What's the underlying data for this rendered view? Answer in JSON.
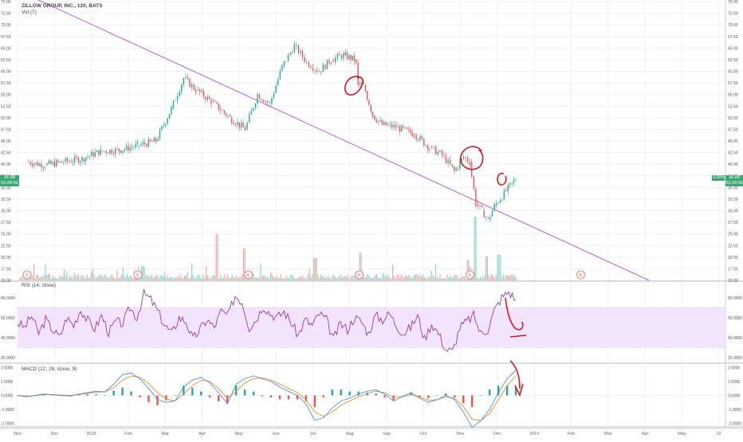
{
  "header": {
    "symbol_line": "ZILLOW GROUP, INC., 120, BATS",
    "vol_label": "Vol (7)",
    "rsi_label": "RSI (14, close)",
    "macd_label": "MACD (12, 26, close, 9)"
  },
  "price_badges": {
    "left_price": "36.88",
    "left_countdown": "01:28:50",
    "right_change": "-6.80%",
    "right_price": "36.88",
    "right_countdown": "01:28:50"
  },
  "colors": {
    "up": "#26a69a",
    "down": "#ef5350",
    "trendline": "#b25fe0",
    "rsi_line": "#8e24aa",
    "rsi_band": "#f1e4fb",
    "macd_line": "#4a90e2",
    "signal_line": "#f08a24",
    "annotation": "#e0141b",
    "earnings_marker": "#f06060",
    "grid": "#eef0f3",
    "badge_bg": "#3ba872"
  },
  "icons": {
    "earnings_marker": "earnings-e-icon"
  },
  "chart_data": [
    {
      "type": "candlestick",
      "pane": "price",
      "ylim": [
        15,
        75
      ],
      "y_ticks": [
        "75.00",
        "72.50",
        "70.00",
        "67.50",
        "65.00",
        "62.50",
        "60.00",
        "57.50",
        "55.00",
        "52.50",
        "50.00",
        "47.50",
        "45.00",
        "42.50",
        "40.00",
        "37.50",
        "35.00",
        "32.50",
        "30.00",
        "27.50",
        "25.00",
        "22.50",
        "20.00",
        "17.50",
        "15.00"
      ],
      "x_ticks": [
        "Nov",
        "Dec",
        "2018",
        "Feb",
        "Mar",
        "Apr",
        "May",
        "Jun",
        "Jul",
        "Aug",
        "Sep",
        "Oct",
        "Nov",
        "Dec",
        "2019",
        "Feb",
        "Mar",
        "Apr",
        "May",
        "22"
      ],
      "last_price": 36.88,
      "change_pct": -6.8,
      "price_path": [
        {
          "x": "Nov 2017",
          "y": 40.5
        },
        {
          "x": "Nov 2017",
          "y": 39.8
        },
        {
          "x": "Dec 2017",
          "y": 40.5
        },
        {
          "x": "Dec 2017",
          "y": 41.2
        },
        {
          "x": "Jan 2018",
          "y": 42.8
        },
        {
          "x": "Jan 2018",
          "y": 43.0
        },
        {
          "x": "Feb 2018",
          "y": 44.0
        },
        {
          "x": "Feb 2018",
          "y": 45.0
        },
        {
          "x": "Mar 2018",
          "y": 52.0
        },
        {
          "x": "Mar 2018",
          "y": 58.5
        },
        {
          "x": "Mar 2018",
          "y": 56.0
        },
        {
          "x": "Apr 2018",
          "y": 53.5
        },
        {
          "x": "Apr 2018",
          "y": 50.0
        },
        {
          "x": "May 2018",
          "y": 47.5
        },
        {
          "x": "May 2018",
          "y": 55.0
        },
        {
          "x": "May 2018",
          "y": 53.0
        },
        {
          "x": "Jun 2018",
          "y": 61.0
        },
        {
          "x": "Jun 2018",
          "y": 65.5
        },
        {
          "x": "Jun 2018",
          "y": 62.0
        },
        {
          "x": "Jul 2018",
          "y": 60.0
        },
        {
          "x": "Jul 2018",
          "y": 62.5
        },
        {
          "x": "Jul 2018",
          "y": 63.5
        },
        {
          "x": "Aug 2018",
          "y": 62.5
        },
        {
          "x": "Aug 2018",
          "y": 57.0
        },
        {
          "x": "Aug 2018",
          "y": 50.5
        },
        {
          "x": "Aug 2018",
          "y": 48.5
        },
        {
          "x": "Sep 2018",
          "y": 48.0
        },
        {
          "x": "Sep 2018",
          "y": 46.5
        },
        {
          "x": "Oct 2018",
          "y": 43.5
        },
        {
          "x": "Oct 2018",
          "y": 42.0
        },
        {
          "x": "Oct 2018",
          "y": 38.5
        },
        {
          "x": "Nov 2018",
          "y": 41.5
        },
        {
          "x": "Nov 2018",
          "y": 40.5
        },
        {
          "x": "Nov 2018",
          "y": 31.5
        },
        {
          "x": "Nov 2018",
          "y": 30.0
        },
        {
          "x": "Nov 2018",
          "y": 28.0
        },
        {
          "x": "Nov 2018",
          "y": 31.0
        },
        {
          "x": "Dec 2018",
          "y": 36.88
        }
      ],
      "trendline": {
        "start": {
          "x": "Nov 2017",
          "y": 77.0
        },
        "end": {
          "x": "Apr 2019",
          "y": 15.0
        }
      },
      "earnings_markers": [
        "Nov 2017",
        "Feb 2018",
        "May 2018",
        "Aug 2018",
        "Nov 2018",
        "Feb 2019"
      ],
      "annotations": [
        "circle near Aug 2018 at ~57.5",
        "circle near late Oct 2018 at ~42.5",
        "circle near Dec 2018 at ~36"
      ]
    },
    {
      "type": "line",
      "pane": "rsi",
      "name": "RSI (14, close)",
      "ylim": [
        15,
        95
      ],
      "y_ticks": [
        "80.0000",
        "60.0000",
        "40.0000",
        "20.0000"
      ],
      "band": [
        30,
        70
      ],
      "values": [
        55,
        50,
        62,
        44,
        58,
        48,
        40,
        60,
        52,
        68,
        57,
        49,
        62,
        45,
        56,
        54,
        70,
        60,
        84,
        78,
        66,
        52,
        44,
        60,
        56,
        38,
        48,
        58,
        50,
        66,
        62,
        82,
        76,
        50,
        58,
        72,
        64,
        60,
        66,
        55,
        42,
        58,
        52,
        64,
        58,
        38,
        54,
        48,
        60,
        56,
        44,
        62,
        58,
        64,
        52,
        44,
        50,
        62,
        38,
        54,
        44,
        28,
        26,
        50,
        56,
        62,
        44,
        48,
        68,
        80,
        86,
        78
      ]
    },
    {
      "type": "line",
      "pane": "macd",
      "name": "MACD (12, 26, close, 9)",
      "ylim": [
        -2.2,
        2.2
      ],
      "y_ticks": [
        "2.0000",
        "1.0000",
        "0.0000",
        "-1.0000",
        "-2.0000"
      ],
      "macd": [
        0.0,
        -0.1,
        0.0,
        0.1,
        0.05,
        0.0,
        -0.05,
        0.1,
        0.2,
        0.3,
        0.25,
        0.8,
        1.5,
        1.6,
        1.2,
        0.5,
        -0.3,
        -0.5,
        -0.4,
        0.6,
        1.1,
        1.3,
        0.9,
        0.2,
        -0.6,
        0.8,
        1.2,
        1.4,
        1.2,
        1.0,
        0.6,
        0.3,
        0.0,
        -0.6,
        -1.8,
        -1.6,
        -0.9,
        -0.4,
        -0.2,
        0.1,
        0.3,
        0.4,
        0.1,
        -0.4,
        -0.1,
        0.2,
        -0.2,
        -0.5,
        -0.3,
        0.0,
        -0.3,
        -1.2,
        -2.3,
        -1.8,
        -1.0,
        0.2,
        1.2,
        1.8
      ],
      "signal": [
        0.0,
        -0.05,
        -0.02,
        0.05,
        0.06,
        0.03,
        0.0,
        0.05,
        0.14,
        0.24,
        0.25,
        0.55,
        1.1,
        1.4,
        1.3,
        0.85,
        0.2,
        -0.25,
        -0.4,
        0.1,
        0.7,
        1.1,
        1.0,
        0.5,
        -0.2,
        0.3,
        0.9,
        1.2,
        1.25,
        1.1,
        0.8,
        0.5,
        0.2,
        -0.3,
        -1.2,
        -1.5,
        -1.2,
        -0.7,
        -0.4,
        -0.1,
        0.15,
        0.3,
        0.2,
        -0.15,
        -0.1,
        0.05,
        -0.1,
        -0.35,
        -0.3,
        -0.1,
        -0.2,
        -0.8,
        -1.7,
        -1.8,
        -1.3,
        -0.3,
        0.7,
        1.4
      ]
    }
  ]
}
